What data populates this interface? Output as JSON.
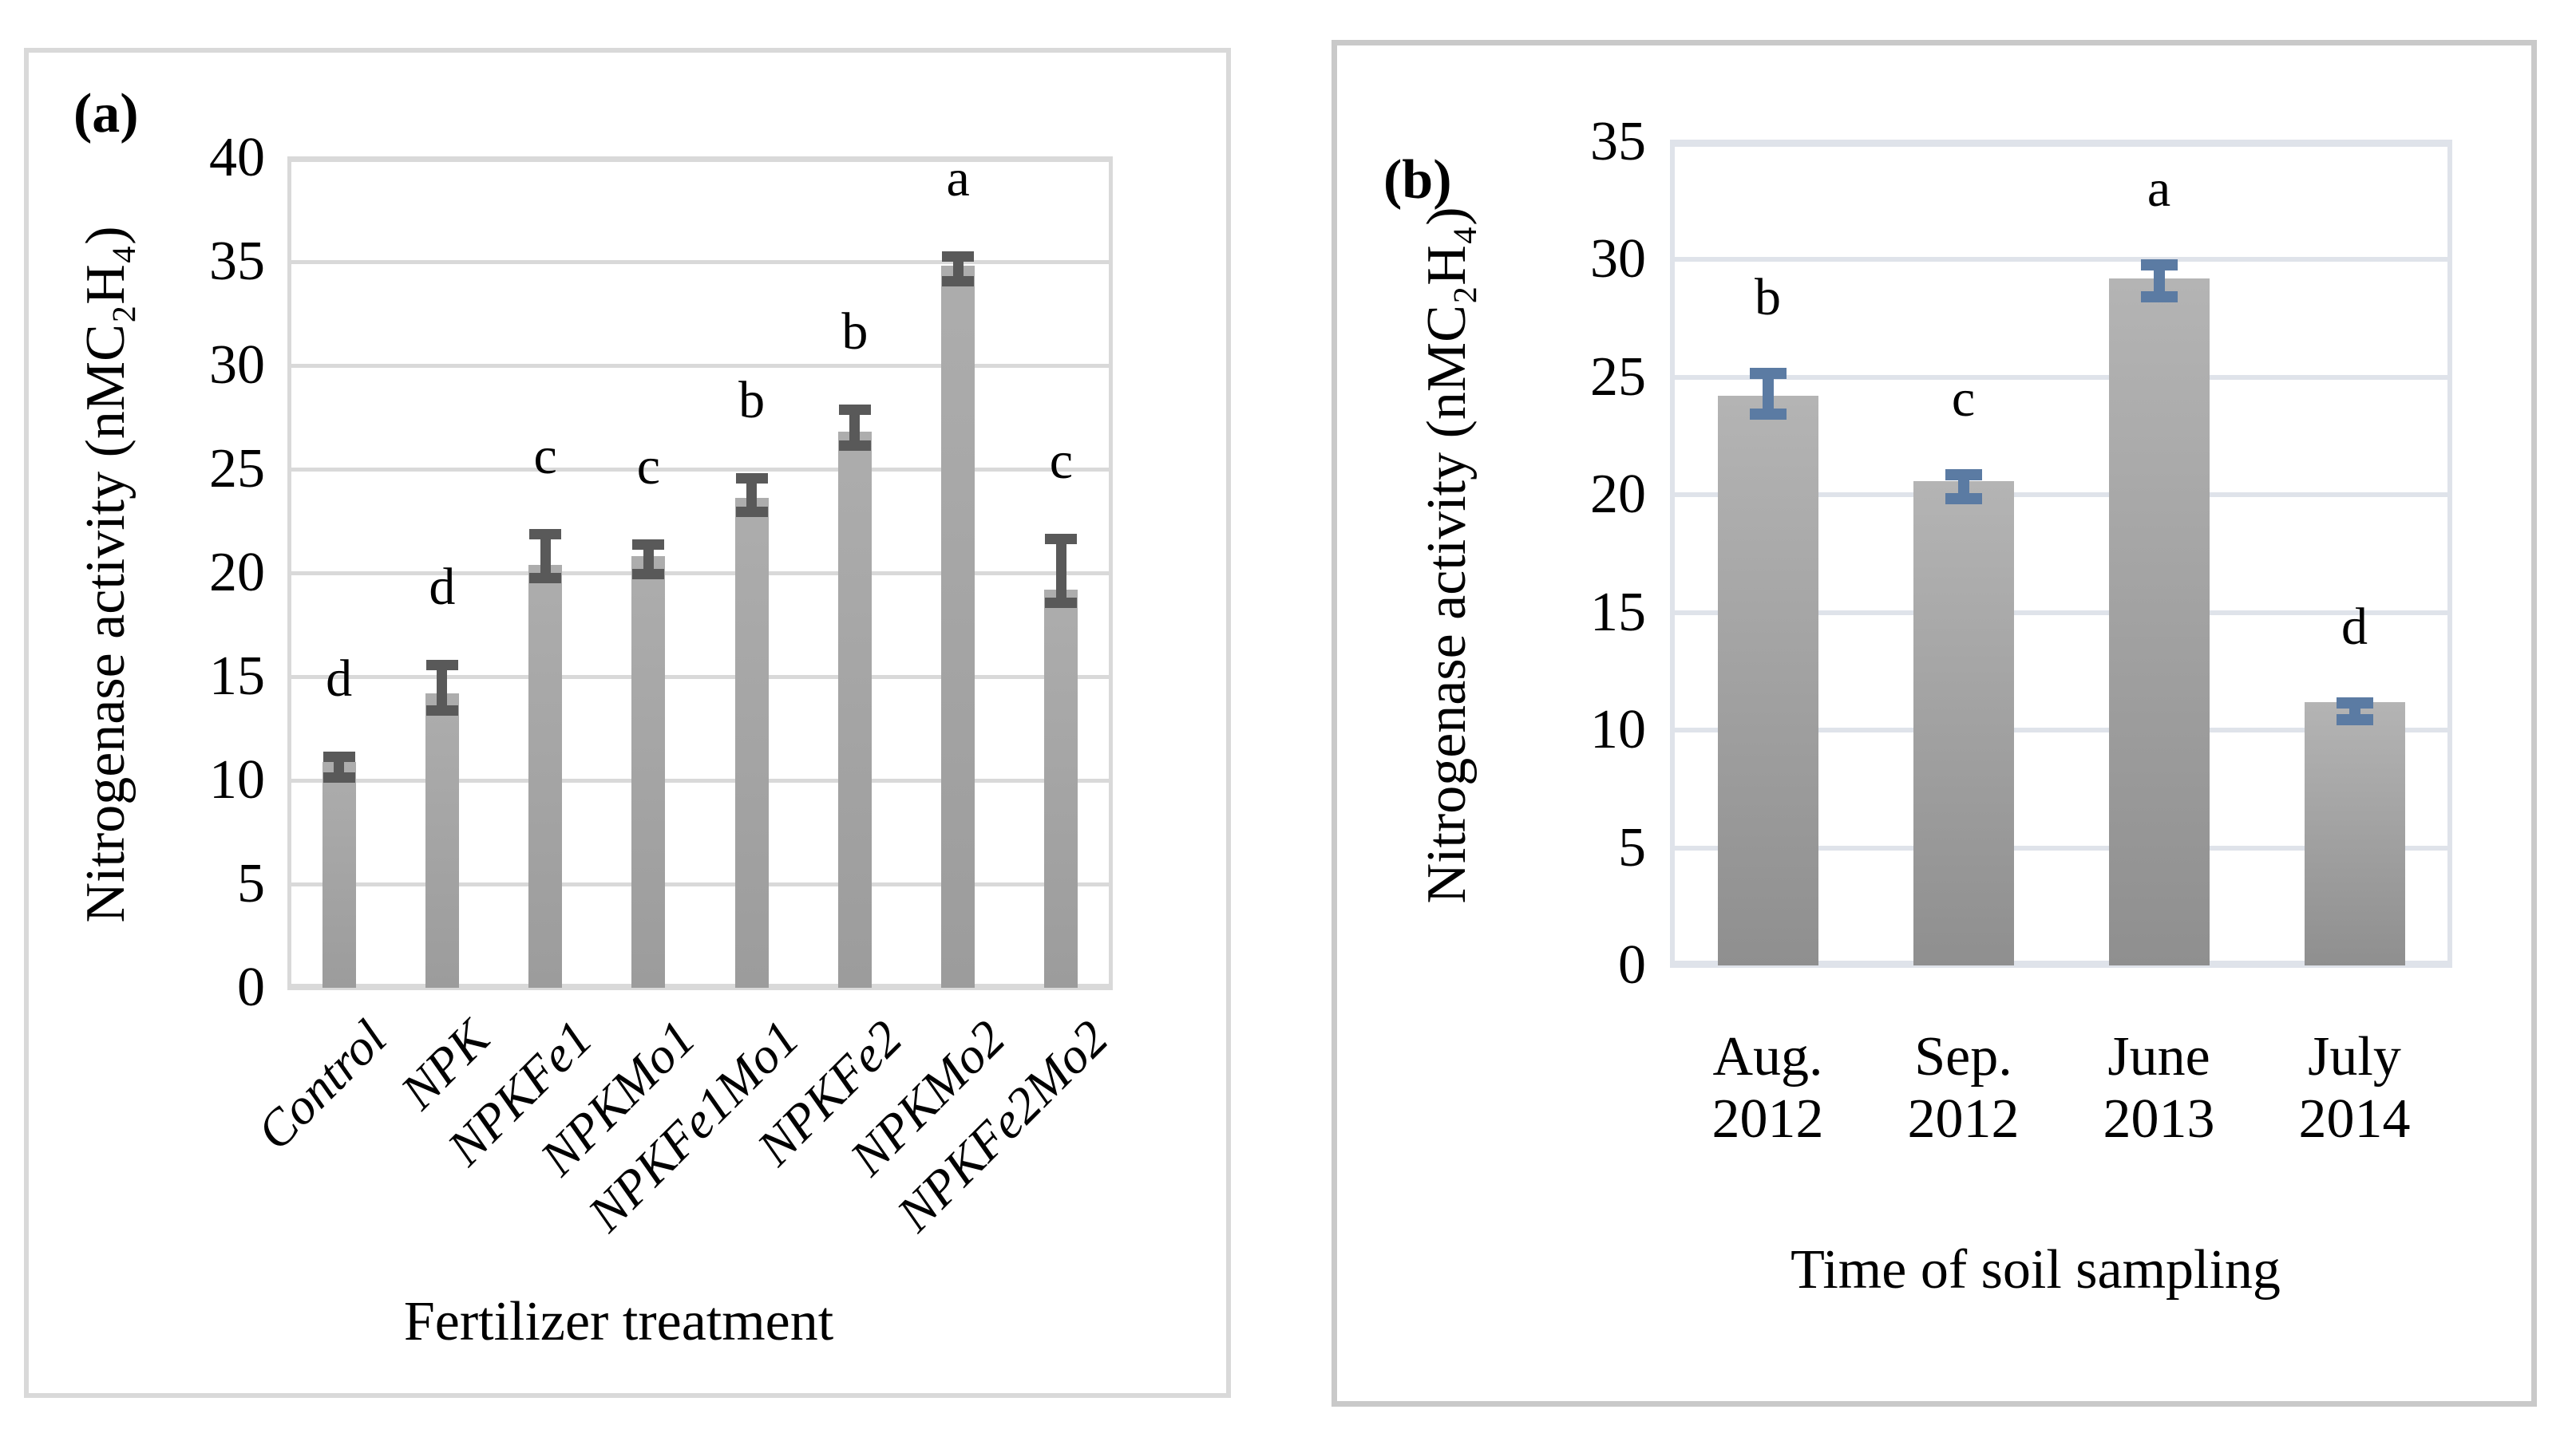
{
  "figure": {
    "panels": [
      {
        "tag": "(a)"
      },
      {
        "tag": "(b)"
      }
    ]
  },
  "chart_data": [
    {
      "type": "bar",
      "panel": "a",
      "categories": [
        "Control",
        "NPK",
        "NPKFe1",
        "NPKMo1",
        "NPKFe1Mo1",
        "NPKFe2",
        "NPKMo2",
        "NPKFe2Mo2"
      ],
      "values": [
        10.9,
        14.2,
        20.4,
        20.8,
        23.6,
        26.8,
        34.8,
        19.2
      ],
      "error_high": [
        11.4,
        15.8,
        22.1,
        21.6,
        24.8,
        28.1,
        35.5,
        21.9
      ],
      "error_low": [
        9.9,
        13.1,
        19.5,
        19.7,
        22.7,
        25.9,
        33.8,
        18.3
      ],
      "sig_letters": [
        "d",
        "d",
        "c",
        "c",
        "b",
        "b",
        "a",
        "c"
      ],
      "xlabel": "Fertilizer treatment",
      "ylabel": "Nitrogenase activity (nMC₂H₄)",
      "ylim": [
        0,
        40
      ],
      "ytick_step": 5,
      "grid": "on",
      "legend": "none",
      "colors": {
        "bar_top": "#adadad",
        "bar_bottom": "#9c9c9c",
        "error": "#595959",
        "grid": "#d9d9d9"
      }
    },
    {
      "type": "bar",
      "panel": "b",
      "categories": [
        "Aug. 2012",
        "Sep. 2012",
        "June 2013",
        "July 2014"
      ],
      "values": [
        24.2,
        20.6,
        29.2,
        11.2
      ],
      "error_high": [
        25.4,
        21.1,
        30.0,
        11.4
      ],
      "error_low": [
        23.2,
        19.6,
        28.2,
        10.2
      ],
      "sig_letters": [
        "b",
        "c",
        "a",
        "d"
      ],
      "xlabel": "Time of soil sampling",
      "ylabel": "Nitrogenase activity (nMC₂H₄)",
      "ylim": [
        0,
        35
      ],
      "ytick_step": 5,
      "grid": "on",
      "legend": "none",
      "colors": {
        "bar_top": "#b4b4b4",
        "bar_bottom": "#8f8f8f",
        "error": "#5b7ba3",
        "grid": "#dfe3ea"
      }
    }
  ]
}
